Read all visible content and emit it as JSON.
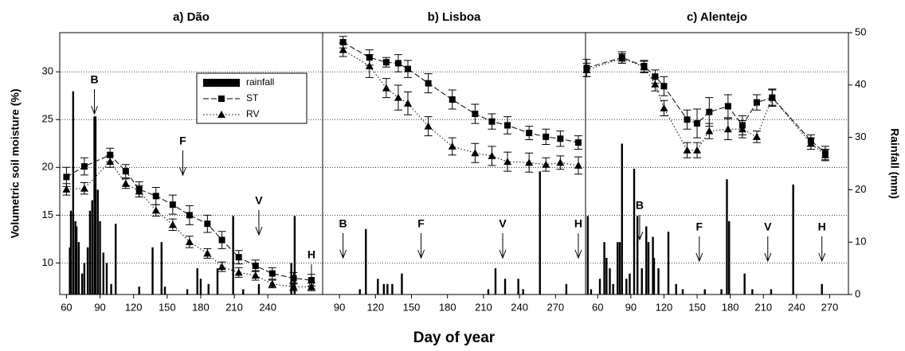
{
  "chart_data": [
    {
      "type": "combo",
      "title": "a) Dão",
      "ylabel": "Volumetric soil moisture (%)",
      "xlim": [
        54,
        289
      ],
      "xticks": [
        60,
        90,
        120,
        150,
        180,
        210,
        240
      ],
      "ylim": [
        6.7,
        34.1
      ],
      "yticks": [
        10,
        15,
        20,
        25,
        30
      ],
      "y2lim": [
        0,
        50
      ],
      "grid": true,
      "legend": "upper right",
      "series": [
        {
          "name": "rainfall",
          "color": "#000000",
          "axis": "y2",
          "x": [
            63,
            64,
            66,
            68,
            69,
            71,
            74,
            76,
            79,
            81,
            83,
            85,
            86,
            88,
            90,
            93,
            96,
            100,
            104,
            125,
            137,
            145,
            148,
            168,
            177,
            180,
            187,
            195,
            209,
            218,
            232,
            261,
            264
          ],
          "values": [
            9,
            16,
            38.8,
            14,
            13,
            10,
            4,
            6,
            9,
            16,
            18,
            34,
            34,
            20,
            14,
            8,
            6,
            2,
            13.5,
            1.5,
            9,
            10,
            1.5,
            1,
            5,
            3,
            2,
            5,
            15,
            1,
            2,
            6,
            15
          ]
        },
        {
          "name": "ST",
          "color": "#000000",
          "x": [
            60,
            76,
            99,
            113,
            125,
            140,
            155,
            170,
            186,
            199,
            214,
            229,
            244,
            263,
            279
          ],
          "values": [
            19,
            20.1,
            21.3,
            19.6,
            17.7,
            17.0,
            16.1,
            15.0,
            14.1,
            12.4,
            10.6,
            9.7,
            8.9,
            8.4,
            8.2
          ],
          "errors": [
            1,
            0.9,
            0.7,
            0.7,
            0.8,
            0.9,
            1.0,
            1.0,
            0.9,
            0.9,
            0.7,
            0.6,
            0.6,
            0.6,
            0.6
          ]
        },
        {
          "name": "RV",
          "color": "#000000",
          "x": [
            60,
            76,
            99,
            113,
            125,
            140,
            155,
            170,
            186,
            199,
            214,
            229,
            244,
            263,
            279
          ],
          "values": [
            17.7,
            17.8,
            20.6,
            18.3,
            17.5,
            15.5,
            14.0,
            12.2,
            11.0,
            9.6,
            9.0,
            8.7,
            7.8,
            7.5,
            7.5
          ],
          "errors": [
            0.6,
            0.6,
            0.6,
            0.5,
            0.6,
            0.6,
            0.6,
            0.6,
            0.5,
            0.5,
            0.5,
            0.5,
            0.4,
            0.4,
            0.4
          ]
        }
      ],
      "annotations": [
        {
          "text": "B",
          "x": 85
        },
        {
          "text": "F",
          "x": 164
        },
        {
          "text": "V",
          "x": 232
        },
        {
          "text": "H",
          "x": 279
        }
      ]
    },
    {
      "type": "combo",
      "title": "b) Lisboa",
      "xlabel": "Day of year",
      "xlim": [
        76,
        295
      ],
      "xticks": [
        90,
        120,
        150,
        180,
        210,
        240,
        270
      ],
      "ylim": [
        6.7,
        34.1
      ],
      "y2lim": [
        0,
        50
      ],
      "grid": true,
      "series": [
        {
          "color": "#000000",
          "axis": "y2",
          "x": [
            107,
            112,
            122,
            127,
            130,
            134,
            142,
            214,
            220,
            228,
            239,
            243,
            257,
            279
          ],
          "values": [
            1,
            12.5,
            3,
            2,
            2,
            2,
            4,
            1,
            5,
            3,
            3,
            1,
            23.5,
            2
          ]
        },
        {
          "color": "#000000",
          "x": [
            93,
            115,
            129,
            139,
            147,
            164,
            184,
            203,
            217,
            230,
            248,
            262,
            274,
            289
          ],
          "values": [
            33.1,
            31.5,
            31.0,
            30.9,
            30.3,
            28.8,
            27.1,
            25.6,
            24.8,
            24.4,
            23.6,
            23.2,
            23.0,
            22.6
          ],
          "errors": [
            0.6,
            0.8,
            0.5,
            0.9,
            0.9,
            1.0,
            1.0,
            1.0,
            0.8,
            0.9,
            0.7,
            0.8,
            0.8,
            0.7
          ]
        },
        {
          "color": "#000000",
          "x": [
            93,
            115,
            129,
            139,
            147,
            164,
            184,
            203,
            217,
            230,
            248,
            262,
            274,
            289
          ],
          "values": [
            32.3,
            30.6,
            28.3,
            27.3,
            26.7,
            24.3,
            22.2,
            21.5,
            21.2,
            20.6,
            20.5,
            20.3,
            20.5,
            20.2
          ],
          "errors": [
            0.7,
            1.2,
            1.0,
            1.3,
            1.2,
            1.0,
            0.9,
            1.0,
            1.0,
            1.0,
            1.0,
            0.7,
            0.7,
            0.9
          ]
        }
      ],
      "annotations": [
        {
          "text": "B",
          "x": 93
        },
        {
          "text": "F",
          "x": 158
        },
        {
          "text": "V",
          "x": 226
        },
        {
          "text": "H",
          "x": 289
        }
      ]
    },
    {
      "type": "combo",
      "title": "c) Alentejo",
      "y2label": "Rainfall (mm)",
      "xlim": [
        49,
        287
      ],
      "xticks": [
        60,
        90,
        120,
        150,
        180,
        210,
        240,
        270
      ],
      "ylim": [
        6.7,
        34.1
      ],
      "y2lim": [
        0,
        50
      ],
      "y2ticks": [
        0,
        10,
        20,
        30,
        40,
        50
      ],
      "grid": true,
      "series": [
        {
          "color": "#000000",
          "axis": "y2",
          "x": [
            51,
            54,
            62,
            66,
            68,
            71,
            74,
            78,
            80,
            82,
            86,
            89,
            93,
            96,
            100,
            104,
            106,
            110,
            111,
            115,
            124,
            131,
            137,
            157,
            172,
            177,
            179,
            193,
            200,
            217,
            237,
            263
          ],
          "values": [
            15,
            1,
            3,
            10,
            7,
            5,
            2,
            10,
            10,
            28.8,
            3,
            4,
            24,
            15,
            5,
            13,
            10,
            11,
            7,
            5,
            12,
            2,
            1,
            1,
            1,
            22,
            14,
            4,
            1,
            1,
            21,
            2
          ]
        },
        {
          "color": "#000000",
          "x": [
            50,
            82,
            102,
            112,
            120,
            141,
            150,
            161,
            178,
            191,
            204,
            218,
            253,
            266
          ],
          "values": [
            30.4,
            31.5,
            30.6,
            29.5,
            28.5,
            25.0,
            24.6,
            25.8,
            26.4,
            24.4,
            26.8,
            27.3,
            22.8,
            21.5
          ],
          "errors": [
            0.9,
            0.6,
            0.6,
            0.7,
            1.0,
            1.0,
            1.5,
            1.5,
            1.2,
            1.0,
            0.8,
            0.9,
            0.6,
            0.7
          ]
        },
        {
          "color": "#000000",
          "x": [
            50,
            82,
            102,
            112,
            120,
            141,
            150,
            161,
            178,
            191,
            204,
            218,
            253,
            266
          ],
          "values": [
            30.2,
            31.4,
            30.5,
            28.7,
            26.2,
            21.8,
            21.8,
            23.8,
            24.0,
            24.0,
            23.2,
            27.3,
            22.5,
            21.3
          ],
          "errors": [
            0.7,
            0.5,
            0.6,
            0.7,
            0.8,
            0.8,
            0.8,
            0.8,
            1.1,
            0.9,
            0.6,
            0.8,
            0.6,
            0.6
          ]
        }
      ],
      "annotations": [
        {
          "text": "B",
          "x": 98
        },
        {
          "text": "F",
          "x": 152
        },
        {
          "text": "V",
          "x": 214
        },
        {
          "text": "H",
          "x": 263
        }
      ]
    }
  ]
}
